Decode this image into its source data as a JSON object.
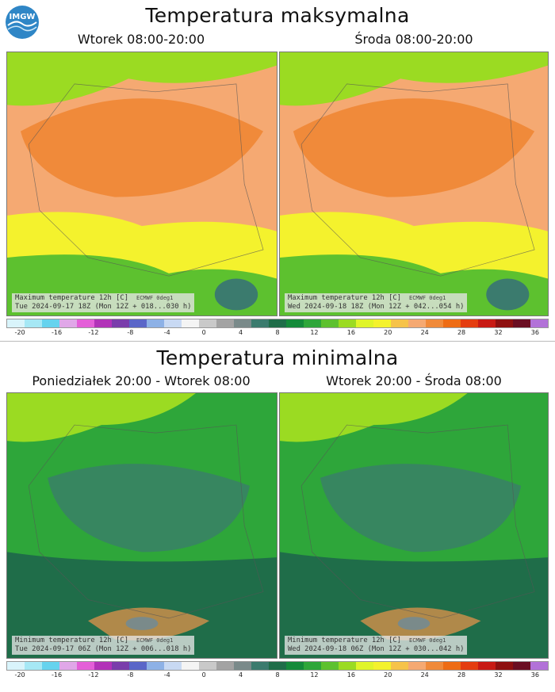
{
  "logo": {
    "text": "IMGW"
  },
  "sections": [
    {
      "title": "Temperatura maksymalna",
      "maps": [
        {
          "title": "Wtorek 08:00-20:00",
          "caption_line1": "Maximum temperature 12h [C]",
          "source": "ECMWF 0deg1",
          "caption_line2": "Tue 2024-09-17 18Z (Mon 12Z + 018...030 h)"
        },
        {
          "title": "Środa 08:00-20:00",
          "caption_line1": "Maximum temperature 12h [C]",
          "source": "ECMWF 0deg1",
          "caption_line2": "Wed 2024-09-18 18Z (Mon 12Z + 042...054 h)"
        }
      ]
    },
    {
      "title": "Temperatura minimalna",
      "maps": [
        {
          "title": "Poniedziałek 20:00 - Wtorek 08:00",
          "caption_line1": "Minimum temperature 12h [C]",
          "source": "ECMWF 0deg1",
          "caption_line2": "Tue 2024-09-17 06Z (Mon 12Z + 006...018 h)"
        },
        {
          "title": "Wtorek 20:00 - Środa 08:00",
          "caption_line1": "Minimum temperature 12h [C]",
          "source": "ECMWF 0deg1",
          "caption_line2": "Wed 2024-09-18 06Z (Mon 12Z + 030...042 h)"
        }
      ]
    }
  ],
  "colorbar": {
    "ticks": [
      "-20",
      "-16",
      "-12",
      "-8",
      "-4",
      "0",
      "4",
      "8",
      "12",
      "16",
      "20",
      "24",
      "28",
      "32",
      "36"
    ],
    "colors": [
      "#d9f4fb",
      "#a6e8f5",
      "#66d3ee",
      "#e0a7e8",
      "#e45fd8",
      "#b233b8",
      "#7a3dab",
      "#5a66c8",
      "#8db1e6",
      "#c8d9f3",
      "#f4f4f4",
      "#c9c9c9",
      "#a3a3a3",
      "#7a8a8a",
      "#3b7b6e",
      "#1f6d49",
      "#148a3a",
      "#2ea63a",
      "#5dc12f",
      "#9bdb22",
      "#e0f52a",
      "#f4f22d",
      "#f6c34a",
      "#f5a972",
      "#f08a3a",
      "#ee6c14",
      "#e43d10",
      "#c81a14",
      "#8e1010",
      "#6a0e22",
      "#b272d8"
    ]
  }
}
